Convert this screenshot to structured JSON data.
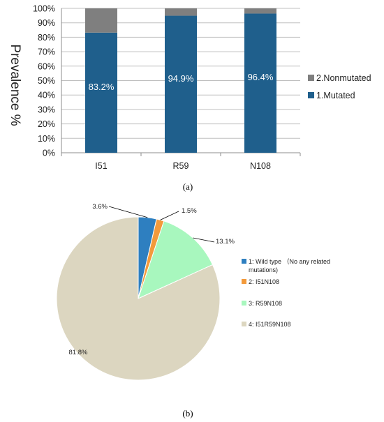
{
  "panel_labels": [
    "(a)",
    "(b)"
  ],
  "chart_data": [
    {
      "type": "bar",
      "stacked": true,
      "ylabel": "Prevalence %",
      "xlabel": "",
      "categories": [
        "I51",
        "R59",
        "N108"
      ],
      "ylim": [
        0,
        100
      ],
      "yticks": [
        "0%",
        "10%",
        "20%",
        "30%",
        "40%",
        "50%",
        "60%",
        "70%",
        "80%",
        "90%",
        "100%"
      ],
      "grid": true,
      "legend_position": "right",
      "series": [
        {
          "name": "1.Mutated",
          "values": [
            83.2,
            94.9,
            96.4
          ],
          "color": "#1F5F8C",
          "labels": [
            "83.2%",
            "94.9%",
            "96.4%"
          ]
        },
        {
          "name": "2.Nonmutated",
          "values": [
            16.8,
            5.1,
            3.6
          ],
          "color": "#7F7F7F"
        }
      ],
      "legend_order": [
        "2.Nonmutated",
        "1.Mutated"
      ]
    },
    {
      "type": "pie",
      "slices": [
        {
          "legend": "1: Wild type  （No any related mutations)",
          "legend_lines": [
            "1: Wild type  （No any related",
            "mutations)"
          ],
          "value": 3.6,
          "label": "3.6%",
          "color": "#2E7FC0"
        },
        {
          "legend": "2: I51N108",
          "legend_lines": [
            "2: I51N108"
          ],
          "value": 1.5,
          "label": "1.5%",
          "color": "#F39A3B"
        },
        {
          "legend": "3: R59N108",
          "legend_lines": [
            "3: R59N108"
          ],
          "value": 13.1,
          "label": "13.1%",
          "color": "#A8F7BE"
        },
        {
          "legend": "4: I51R59N108",
          "legend_lines": [
            "4: I51R59N108"
          ],
          "value": 81.8,
          "label": "81.8%",
          "color": "#DCD6C0"
        }
      ],
      "legend_position": "right"
    }
  ]
}
